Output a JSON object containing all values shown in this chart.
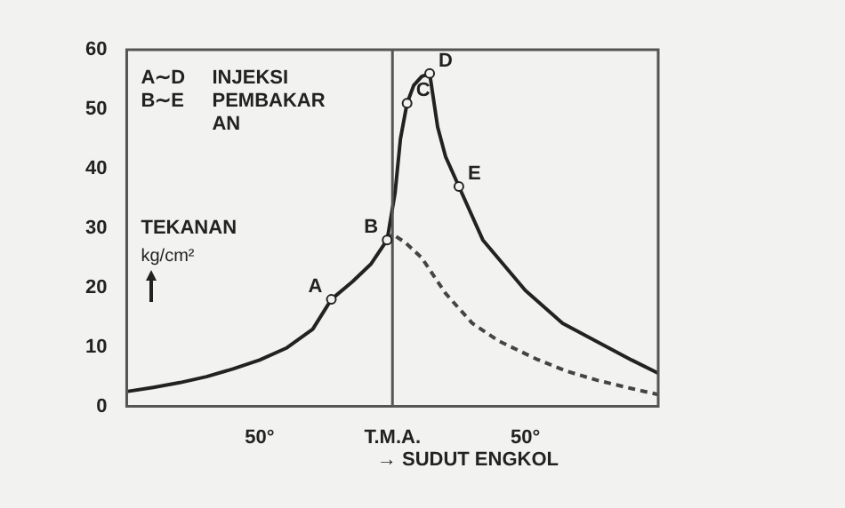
{
  "chart_data": {
    "type": "line",
    "xlabel": "→ SUDUT ENGKOL",
    "ylabel": "TEKANAN kg/cm²",
    "x": [
      -100,
      -90,
      -80,
      -70,
      -60,
      -50,
      -40,
      -30,
      -23,
      -15,
      -8,
      -2,
      1,
      3,
      5.5,
      8,
      11,
      14,
      17,
      20,
      25,
      34,
      50,
      64,
      77,
      90,
      100
    ],
    "series": [
      {
        "color": "#222222",
        "line_style": "solid",
        "values": [
          2.5,
          3.2,
          4,
          5,
          6.3,
          7.8,
          9.8,
          13,
          18,
          21,
          24,
          28,
          36,
          45,
          51,
          54,
          55.5,
          56,
          47,
          42,
          37,
          28,
          19.5,
          14,
          10.9,
          7.8,
          5.6
        ]
      },
      {
        "color": "#444444",
        "line_style": "dashed",
        "x": [
          -2,
          0,
          5,
          11,
          20,
          30,
          40,
          54,
          65,
          77,
          90,
          100
        ],
        "values": [
          28,
          29,
          27.5,
          25,
          19,
          14,
          11,
          8,
          6,
          4.4,
          3,
          2
        ]
      }
    ],
    "xlim": [
      -100,
      100
    ],
    "xticks": [
      {
        "value": -50,
        "label": "50°"
      },
      {
        "value": 0,
        "label": "T.M.A."
      },
      {
        "value": 50,
        "label": "50°"
      }
    ],
    "ylim": [
      0,
      60
    ],
    "yticks": [
      0,
      10,
      20,
      30,
      40,
      50,
      60
    ],
    "ref_lines": [
      {
        "axis": "x",
        "value": 0,
        "color": "#555555"
      }
    ],
    "annotations": [
      "A∼D INJEKSI",
      "B∼E PEMBAKAR\nAN",
      {
        "text": "A",
        "x": -23,
        "y": 18
      },
      {
        "text": "B",
        "x": -2,
        "y": 28
      },
      {
        "text": "C",
        "x": 5.5,
        "y": 51
      },
      {
        "text": "D",
        "x": 14,
        "y": 56
      },
      {
        "text": "E",
        "x": 25,
        "y": 37
      }
    ],
    "grid": false,
    "legend": false,
    "marker": "none"
  }
}
